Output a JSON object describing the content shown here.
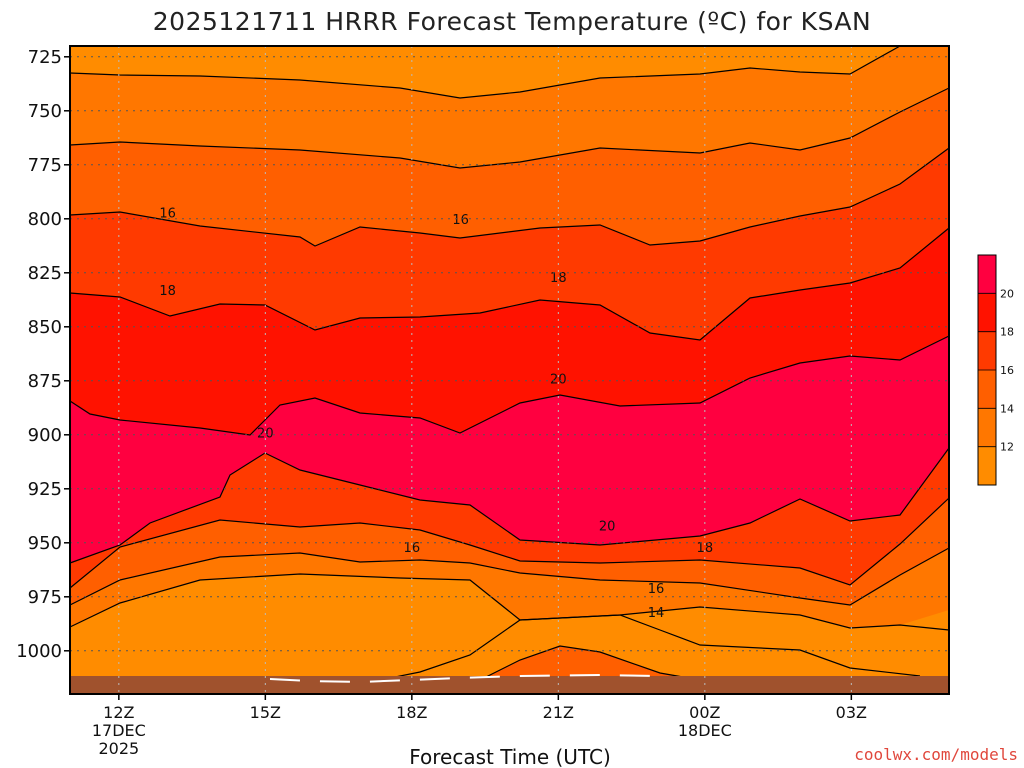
{
  "chart_data": {
    "type": "contour",
    "title": "2025121711 HRRR Forecast Temperature (ºC) for KSAN",
    "xlabel": "Forecast Time (UTC)",
    "ylabel": "",
    "y_ticks": [
      "725",
      "750",
      "775",
      "800",
      "825",
      "850",
      "875",
      "900",
      "925",
      "950",
      "975",
      "1000"
    ],
    "y_values": [
      725,
      750,
      775,
      800,
      825,
      850,
      875,
      900,
      925,
      950,
      975,
      1000
    ],
    "ylim": [
      1020,
      720
    ],
    "x_ticks": [
      {
        "line1": "12Z",
        "line2": "17DEC",
        "line3": "2025"
      },
      {
        "line1": "15Z",
        "line2": "",
        "line3": ""
      },
      {
        "line1": "18Z",
        "line2": "",
        "line3": ""
      },
      {
        "line1": "21Z",
        "line2": "",
        "line3": ""
      },
      {
        "line1": "00Z",
        "line2": "18DEC",
        "line3": ""
      },
      {
        "line1": "03Z",
        "line2": "",
        "line3": ""
      }
    ],
    "x_hours": [
      0,
      3,
      6,
      9,
      12,
      15
    ],
    "xlim": [
      -1,
      17
    ],
    "grid": true,
    "colorbar": {
      "levels": [
        "12",
        "14",
        "16",
        "18",
        "20"
      ],
      "colors": [
        "#ff8c00",
        "#ff7700",
        "#ff5f00",
        "#ff3a00",
        "#ff1200",
        "#ff0040"
      ]
    },
    "contour_labels": [
      {
        "text": "16",
        "hour": 1,
        "p": 797
      },
      {
        "text": "16",
        "hour": 7,
        "p": 800
      },
      {
        "text": "18",
        "hour": 1,
        "p": 833
      },
      {
        "text": "18",
        "hour": 9,
        "p": 827
      },
      {
        "text": "20",
        "hour": 9,
        "p": 874
      },
      {
        "text": "20",
        "hour": 3,
        "p": 899
      },
      {
        "text": "20",
        "hour": 10,
        "p": 942
      },
      {
        "text": "16",
        "hour": 6,
        "p": 952
      },
      {
        "text": "18",
        "hour": 12,
        "p": 952
      },
      {
        "text": "16",
        "hour": 11,
        "p": 971
      },
      {
        "text": "14",
        "hour": 11,
        "p": 982
      }
    ],
    "surface_color": "#a0522d",
    "surface_p": 1013
  },
  "credit": "coolwx.com/models",
  "colors": {
    "credit": "#e0473c",
    "grid": "#555555",
    "contour": "#000000"
  }
}
